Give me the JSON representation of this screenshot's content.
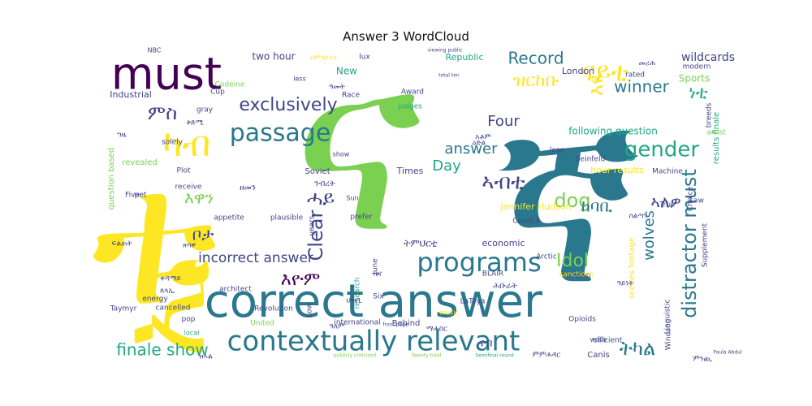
{
  "chart_data": {
    "type": "wordcloud",
    "title": "Answer 3 WordCloud",
    "colors": [
      "#fde725",
      "#7ad151",
      "#22a884",
      "#2a788e",
      "#414487",
      "#440154"
    ],
    "words": [
      {
        "text": "ና",
        "weight": 100,
        "color": 1
      },
      {
        "text": "ኛ",
        "weight": 92,
        "color": 3
      },
      {
        "text": "ቱ",
        "weight": 78,
        "color": 0
      },
      {
        "text": "ኢ",
        "weight": 70,
        "color": 0
      },
      {
        "text": "correct answer",
        "weight": 48,
        "color": 3
      },
      {
        "text": "must",
        "weight": 40,
        "color": 5
      },
      {
        "text": "contextually relevant",
        "weight": 30,
        "color": 3
      },
      {
        "text": "programs",
        "weight": 28,
        "color": 3
      },
      {
        "text": "passage",
        "weight": 26,
        "color": 3
      },
      {
        "text": "ካብ",
        "weight": 36,
        "color": 0
      },
      {
        "text": "ናይቲ",
        "weight": 26,
        "color": 0
      },
      {
        "text": "exclusively",
        "weight": 20,
        "color": 4
      },
      {
        "text": "gender",
        "weight": 22,
        "color": 2
      },
      {
        "text": "finale show",
        "weight": 19,
        "color": 2
      },
      {
        "text": "distractor must",
        "weight": 20,
        "color": 3
      },
      {
        "text": "Clear",
        "weight": 20,
        "color": 4
      },
      {
        "text": "dog",
        "weight": 21,
        "color": 1
      },
      {
        "text": "ኣብቲ",
        "weight": 21,
        "color": 4
      },
      {
        "text": "ምስ",
        "weight": 20,
        "color": 4
      },
      {
        "text": "እዩ",
        "weight": 22,
        "color": 0
      },
      {
        "text": "ዝርከቡ",
        "weight": 18,
        "color": 0
      },
      {
        "text": "Record",
        "weight": 17,
        "color": 3
      },
      {
        "text": "winner",
        "weight": 17,
        "color": 3
      },
      {
        "text": "Four",
        "weight": 16,
        "color": 4
      },
      {
        "text": "answer",
        "weight": 16,
        "color": 3
      },
      {
        "text": "Day",
        "weight": 16,
        "color": 2
      },
      {
        "text": "ሓይ",
        "weight": 18,
        "color": 4
      },
      {
        "text": "እዋን",
        "weight": 15,
        "color": 1
      },
      {
        "text": "incorrect answer",
        "weight": 14,
        "color": 4
      },
      {
        "text": "Idol",
        "weight": 18,
        "color": 1
      },
      {
        "text": "ትካል",
        "weight": 18,
        "color": 3
      },
      {
        "text": "wolves",
        "weight": 14,
        "color": 3
      },
      {
        "text": "ከባቢ",
        "weight": 16,
        "color": 3
      },
      {
        "text": "ኣለዎ",
        "weight": 15,
        "color": 4
      },
      {
        "text": "ቦታ",
        "weight": 15,
        "color": 4
      },
      {
        "text": "እዮም",
        "weight": 18,
        "color": 5
      },
      {
        "text": "ነቲ",
        "weight": 18,
        "color": 2
      },
      {
        "text": "following question",
        "weight": 9,
        "color": 2
      },
      {
        "text": "hour results",
        "weight": 8,
        "color": 0
      },
      {
        "text": "Jennifer Hudson",
        "weight": 8,
        "color": 0
      },
      {
        "text": "scenes footage",
        "weight": 7,
        "color": 0
      },
      {
        "text": "results finale",
        "weight": 7,
        "color": 2
      },
      {
        "text": "question based",
        "weight": 7,
        "color": 1
      },
      {
        "text": "two hour",
        "weight": 8,
        "color": 4
      },
      {
        "text": "Republic",
        "weight": 8,
        "color": 2
      },
      {
        "text": "Industrial",
        "weight": 8,
        "color": 4
      },
      {
        "text": "wildcards",
        "weight": 10,
        "color": 4
      },
      {
        "text": "New",
        "weight": 8,
        "color": 2
      },
      {
        "text": "London",
        "weight": 7,
        "color": 4
      },
      {
        "text": "Times",
        "weight": 7,
        "color": 4
      },
      {
        "text": "Soviet",
        "weight": 7,
        "color": 4
      },
      {
        "text": "economic",
        "weight": 7,
        "color": 4
      },
      {
        "text": "Sports",
        "weight": 8,
        "color": 1
      },
      {
        "text": "modern",
        "weight": 6,
        "color": 4
      },
      {
        "text": "rated",
        "weight": 6,
        "color": 4
      },
      {
        "text": "Award",
        "weight": 6,
        "color": 4
      },
      {
        "text": "judges",
        "weight": 6,
        "color": 2
      },
      {
        "text": "Race",
        "weight": 6,
        "color": 4
      },
      {
        "text": "revealed",
        "weight": 7,
        "color": 1
      },
      {
        "text": "pet",
        "weight": 6,
        "color": 4
      },
      {
        "text": "Five",
        "weight": 6,
        "color": 4
      },
      {
        "text": "Plot",
        "weight": 6,
        "color": 4
      },
      {
        "text": "solely",
        "weight": 6,
        "color": 4
      },
      {
        "text": "gray",
        "weight": 6,
        "color": 4
      },
      {
        "text": "receive",
        "weight": 6,
        "color": 4
      },
      {
        "text": "appetite",
        "weight": 6,
        "color": 4
      },
      {
        "text": "plausible",
        "weight": 6,
        "color": 4
      },
      {
        "text": "prefer",
        "weight": 6,
        "color": 4
      },
      {
        "text": "Council",
        "weight": 6,
        "color": 4
      },
      {
        "text": "architect",
        "weight": 6,
        "color": 4
      },
      {
        "text": "energy",
        "weight": 6,
        "color": 4
      },
      {
        "text": "cancelled",
        "weight": 6,
        "color": 4
      },
      {
        "text": "Revolution",
        "weight": 6,
        "color": 4
      },
      {
        "text": "Taymyr",
        "weight": 6,
        "color": 4
      },
      {
        "text": "pop",
        "weight": 6,
        "color": 4
      },
      {
        "text": "local",
        "weight": 5,
        "color": 2
      },
      {
        "text": "United",
        "weight": 6,
        "color": 1
      },
      {
        "text": "international",
        "weight": 6,
        "color": 4
      },
      {
        "text": "Behind",
        "weight": 7,
        "color": 4
      },
      {
        "text": "music",
        "weight": 5,
        "color": 0
      },
      {
        "text": "LaToya",
        "weight": 6,
        "color": 4
      },
      {
        "text": "June",
        "weight": 6,
        "color": 4
      },
      {
        "text": "research",
        "weight": 6,
        "color": 2
      },
      {
        "text": "Six",
        "weight": 6,
        "color": 4
      },
      {
        "text": "Low",
        "weight": 6,
        "color": 4
      },
      {
        "text": "years",
        "weight": 6,
        "color": 4
      },
      {
        "text": "BLAIR",
        "weight": 6,
        "color": 4
      },
      {
        "text": "Arctic",
        "weight": 6,
        "color": 4
      },
      {
        "text": "Russian",
        "weight": 6,
        "color": 4
      },
      {
        "text": "sanctions",
        "weight": 6,
        "color": 0
      },
      {
        "text": "Linguistic",
        "weight": 6,
        "color": 4
      },
      {
        "text": "Opioids",
        "weight": 6,
        "color": 4
      },
      {
        "text": "efficient",
        "weight": 6,
        "color": 4
      },
      {
        "text": "Canis",
        "weight": 7,
        "color": 4
      },
      {
        "text": "Windsor",
        "weight": 6,
        "color": 4
      },
      {
        "text": "Choice",
        "weight": 6,
        "color": 4
      },
      {
        "text": "Supplement",
        "weight": 6,
        "color": 4
      },
      {
        "text": "True",
        "weight": 6,
        "color": 4
      },
      {
        "text": "Law",
        "weight": 6,
        "color": 4
      },
      {
        "text": "Machine",
        "weight": 6,
        "color": 4
      },
      {
        "text": "artist",
        "weight": 6,
        "color": 1
      },
      {
        "text": "breeds",
        "weight": 6,
        "color": 4
      },
      {
        "text": "lose",
        "weight": 6,
        "color": 4
      },
      {
        "text": "Seinfeld",
        "weight": 6,
        "color": 4
      },
      {
        "text": "Sun",
        "weight": 5,
        "color": 4
      },
      {
        "text": "show",
        "weight": 5,
        "color": 4
      },
      {
        "text": "Cup",
        "weight": 6,
        "color": 4
      },
      {
        "text": "Codeine",
        "weight": 6,
        "color": 1
      },
      {
        "text": "NBC",
        "weight": 5,
        "color": 4
      },
      {
        "text": "less",
        "weight": 5,
        "color": 4
      },
      {
        "text": "lux",
        "weight": 6,
        "color": 4
      },
      {
        "text": "viewing public",
        "weight": 4,
        "color": 4
      },
      {
        "text": "Paula Abdul",
        "weight": 4,
        "color": 4
      },
      {
        "text": "front page",
        "weight": 4,
        "color": 4
      },
      {
        "text": "publicly criticized",
        "weight": 4,
        "color": 1
      },
      {
        "text": "Twenty total",
        "weight": 4,
        "color": 1
      },
      {
        "text": "Semifinal round",
        "weight": 4,
        "color": 2
      },
      {
        "text": "total ten",
        "weight": 4,
        "color": 4
      },
      {
        "text": "ትምህርቲ",
        "weight": 9,
        "color": 4
      },
      {
        "text": "ንብረት",
        "weight": 7,
        "color": 4
      },
      {
        "text": "ዘመን",
        "weight": 7,
        "color": 4
      },
      {
        "text": "ዓመት",
        "weight": 6,
        "color": 4
      },
      {
        "text": "ዕድል",
        "weight": 6,
        "color": 4
      },
      {
        "text": "ዓይነት",
        "weight": 6,
        "color": 4
      },
      {
        "text": "ሕቡራት",
        "weight": 6,
        "color": 4
      },
      {
        "text": "ህዝቢ",
        "weight": 6,
        "color": 4
      },
      {
        "text": "ጸላኢ",
        "weight": 6,
        "color": 4
      },
      {
        "text": "ሃገራት",
        "weight": 6,
        "color": 4
      },
      {
        "text": "ምምሕዳር",
        "weight": 6,
        "color": 4
      },
      {
        "text": "ምንጪ",
        "weight": 6,
        "color": 4
      },
      {
        "text": "ዝኣል",
        "weight": 6,
        "color": 4
      },
      {
        "text": "ማሕበር",
        "weight": 6,
        "color": 4
      },
      {
        "text": "ዜና",
        "weight": 6,
        "color": 4
      },
      {
        "text": "ፍልጠት",
        "weight": 6,
        "color": 4
      },
      {
        "text": "ግዜ",
        "weight": 6,
        "color": 4
      },
      {
        "text": "መሪሕ",
        "weight": 6,
        "color": 4
      },
      {
        "text": "ዓለም",
        "weight": 6,
        "color": 4
      },
      {
        "text": "ቀዳማይ",
        "weight": 6,
        "color": 4
      },
      {
        "text": "ናብ",
        "weight": 8,
        "color": 4
      },
      {
        "text": "ስልጣን",
        "weight": 6,
        "color": 4
      },
      {
        "text": "ብምኽንያት",
        "weight": 5,
        "color": 0
      },
      {
        "text": "ቅድሚ",
        "weight": 6,
        "color": 4
      },
      {
        "text": "ጽባቐ",
        "weight": 5,
        "color": 4
      },
      {
        "text": "እቶም",
        "weight": 6,
        "color": 4
      }
    ]
  }
}
